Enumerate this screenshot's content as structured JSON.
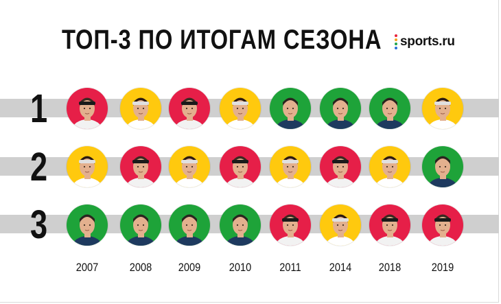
{
  "title": "ТОП-3 ПО ИТОГАМ СЕЗОНА",
  "logo": {
    "text": "sports.ru",
    "dot_colors": [
      "#e8243c",
      "#f6a21c",
      "#21a34b",
      "#2a6fd6"
    ]
  },
  "ranks": [
    "1",
    "2",
    "3"
  ],
  "years": [
    "2007",
    "2008",
    "2009",
    "2010",
    "2011",
    "2014",
    "2018",
    "2019"
  ],
  "player_colors": {
    "federer": "#e61f48",
    "nadal": "#ffc90e",
    "djokovic": "#1ea339"
  },
  "grid": [
    [
      "federer",
      "nadal",
      "federer",
      "nadal",
      "djokovic",
      "djokovic",
      "djokovic",
      "nadal"
    ],
    [
      "nadal",
      "federer",
      "nadal",
      "federer",
      "nadal",
      "federer",
      "nadal",
      "djokovic"
    ],
    [
      "djokovic",
      "djokovic",
      "djokovic",
      "djokovic",
      "federer",
      "nadal",
      "federer",
      "federer"
    ]
  ]
}
